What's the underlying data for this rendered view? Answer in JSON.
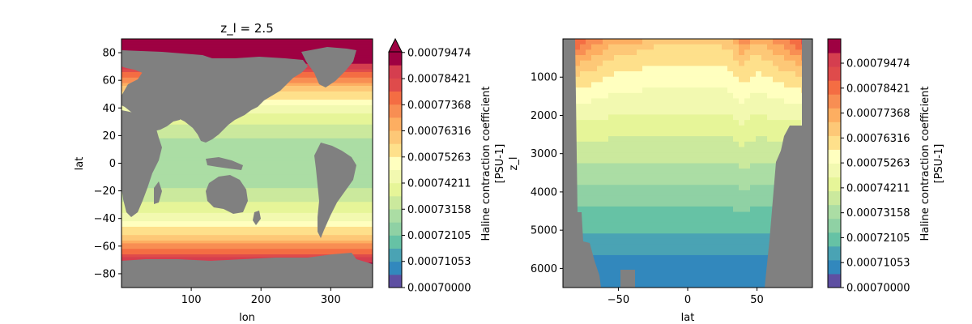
{
  "colors": {
    "land": "#808080",
    "palette": [
      "#5e4fa2",
      "#3288bd",
      "#4aa3b4",
      "#66c2a5",
      "#8fd1a4",
      "#abdda4",
      "#cbe99d",
      "#e6f598",
      "#f2f9b0",
      "#ffffbf",
      "#fee08b",
      "#fdc877",
      "#fdae61",
      "#f88e53",
      "#f46d43",
      "#df4b4b",
      "#d53e4f",
      "#9e0142"
    ]
  },
  "chart_data": [
    {
      "type": "heatmap",
      "title": "z_l = 2.5",
      "xlabel": "lon",
      "ylabel": "lat",
      "xlim": [
        0,
        360
      ],
      "ylim": [
        -90,
        90
      ],
      "xticks": [
        100,
        200,
        300
      ],
      "xtick_labels": [
        "100",
        "200",
        "300"
      ],
      "yticks": [
        80,
        60,
        40,
        20,
        0,
        -20,
        -40,
        -60,
        -80
      ],
      "ytick_labels": [
        "80",
        "60",
        "40",
        "20",
        "0",
        "−20",
        "−40",
        "−60",
        "−80"
      ],
      "colorbar": {
        "label": "Haline contraction coefficient",
        "units": "[PSU-1]",
        "extend": "max",
        "range": [
          0.0007,
          0.000795
        ],
        "ticks": [
          "0.00070000",
          "0.00071053",
          "0.00072105",
          "0.00073158",
          "0.00074211",
          "0.00075263",
          "0.00076316",
          "0.00077368",
          "0.00078421",
          "0.00079474"
        ]
      }
    },
    {
      "type": "heatmap",
      "title": "",
      "xlabel": "lat",
      "ylabel": "z_l",
      "xlim": [
        -90,
        90
      ],
      "ylim": [
        6500,
        0
      ],
      "xticks": [
        -50,
        0,
        50
      ],
      "xtick_labels": [
        "−50",
        "0",
        "50"
      ],
      "yticks": [
        1000,
        2000,
        3000,
        4000,
        5000,
        6000
      ],
      "ytick_labels": [
        "1000",
        "2000",
        "3000",
        "4000",
        "5000",
        "6000"
      ],
      "colorbar": {
        "label": "Haline contraction coefficient",
        "units": "[PSU-1]",
        "extend": "neither",
        "range": [
          0.0007,
          0.000805
        ],
        "ticks": [
          "0.00070000",
          "0.00071053",
          "0.00072105",
          "0.00073158",
          "0.00074211",
          "0.00075263",
          "0.00076316",
          "0.00077368",
          "0.00078421",
          "0.00079474"
        ]
      }
    }
  ]
}
